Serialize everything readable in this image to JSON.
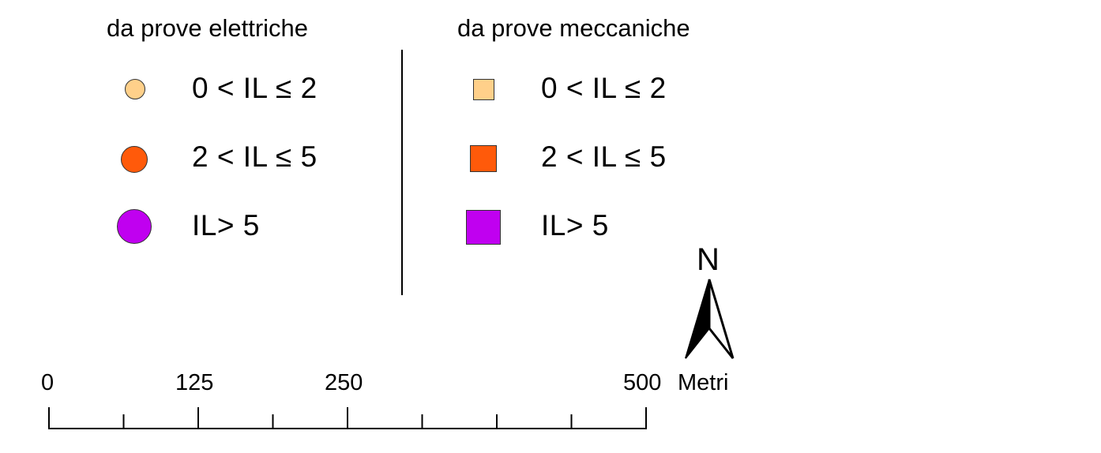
{
  "legend": {
    "electrical": {
      "heading": "da prove elettriche",
      "items": [
        {
          "label": "0 < IL ≤ 2",
          "color": "#FFD08A",
          "shape": "circle"
        },
        {
          "label": "2 < IL ≤ 5",
          "color": "#FF5A0A",
          "shape": "circle"
        },
        {
          "label": "IL> 5",
          "color": "#C000F0",
          "shape": "circle"
        }
      ]
    },
    "mechanical": {
      "heading": "da prove meccaniche",
      "items": [
        {
          "label": "0 < IL ≤ 2",
          "color": "#FFD08A",
          "shape": "square"
        },
        {
          "label": "2 < IL ≤ 5",
          "color": "#FF5A0A",
          "shape": "square"
        },
        {
          "label": "IL> 5",
          "color": "#C000F0",
          "shape": "square"
        }
      ]
    }
  },
  "north_arrow": {
    "label": "N"
  },
  "scale_bar": {
    "ticks": [
      "0",
      "125",
      "250",
      "500"
    ],
    "unit": "Metri"
  }
}
